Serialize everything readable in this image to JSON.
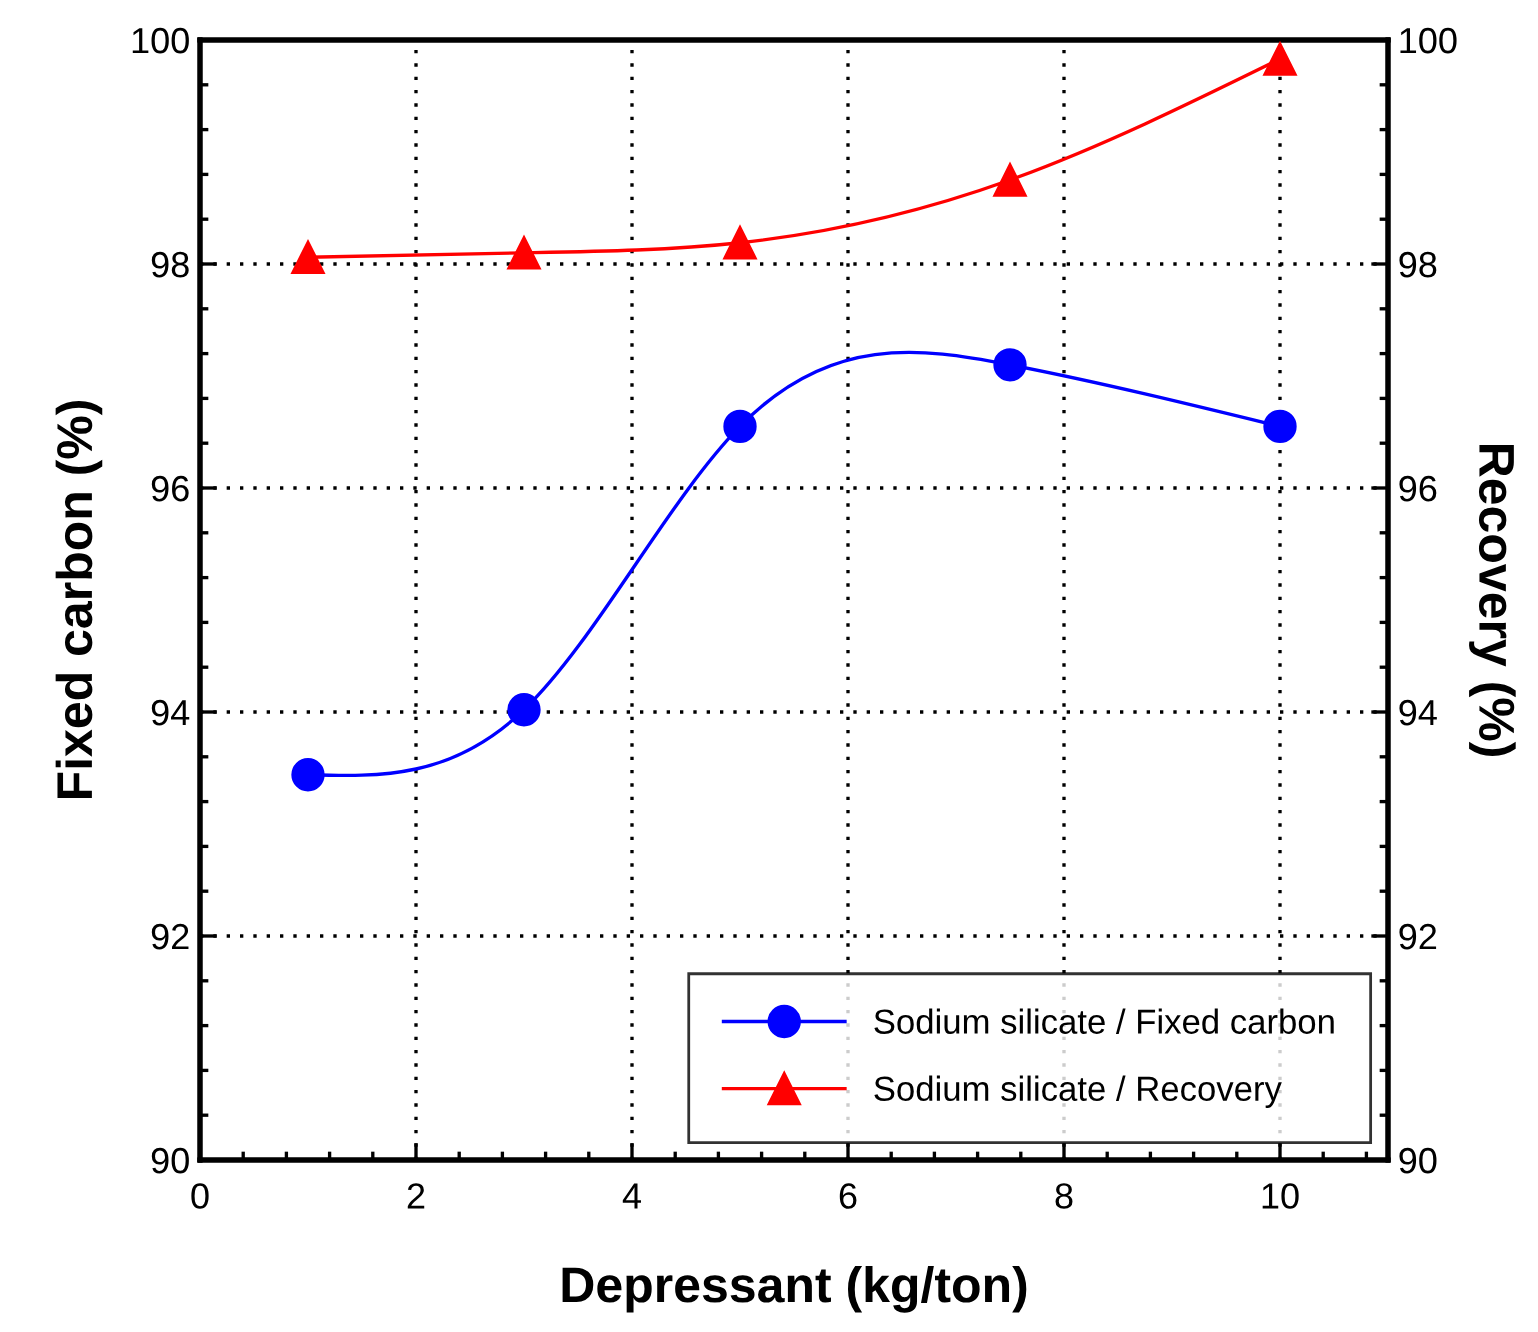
{
  "chart_data": {
    "type": "line",
    "xlabel": "Depressant (kg/ton)",
    "ylabel": "Fixed carbon (%)",
    "y2label": "Recovery (%)",
    "x": [
      1,
      3,
      5,
      7.5,
      10
    ],
    "series": [
      {
        "name": "Sodium silicate / Fixed carbon",
        "color": "#0000ff",
        "marker": "circle",
        "values": [
          93.44,
          94.02,
          96.55,
          97.1,
          96.55
        ]
      },
      {
        "name": "Sodium silicate / Recovery",
        "color": "#ff0000",
        "marker": "triangle",
        "axis": "y2",
        "values": [
          98.06,
          98.1,
          98.19,
          98.75,
          99.83
        ]
      }
    ],
    "xlim": [
      0,
      11
    ],
    "xticks": [
      0,
      2,
      4,
      6,
      8,
      10
    ],
    "ylim": [
      90,
      100
    ],
    "yticks": [
      90,
      92,
      94,
      96,
      98,
      100
    ],
    "y2lim": [
      90,
      100
    ],
    "y2ticks": [
      90,
      92,
      94,
      96,
      98,
      100
    ],
    "grid": true,
    "legend": "bottom right",
    "line_style": "solid"
  }
}
